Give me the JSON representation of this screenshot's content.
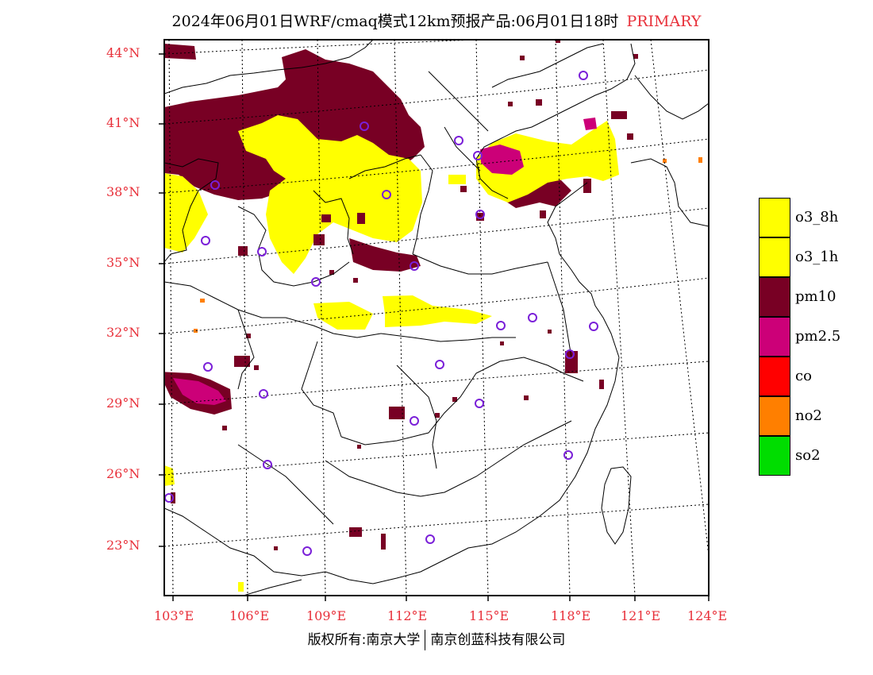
{
  "title": {
    "main": "2024年06月01日WRF/cmaq模式12km预报产品:06月01日18时",
    "tag": "PRIMARY"
  },
  "axes": {
    "lat_labels": [
      "44°N",
      "41°N",
      "38°N",
      "35°N",
      "32°N",
      "29°N",
      "26°N",
      "23°N"
    ],
    "lon_labels": [
      "103°E",
      "106°E",
      "109°E",
      "112°E",
      "115°E",
      "118°E",
      "121°E",
      "124°E"
    ]
  },
  "legend": [
    {
      "label": "o3_8h",
      "color": "#ffff00"
    },
    {
      "label": "o3_1h",
      "color": "#ffff00"
    },
    {
      "label": "pm10",
      "color": "#780024"
    },
    {
      "label": "pm2.5",
      "color": "#cc0078"
    },
    {
      "label": "co",
      "color": "#ff0000"
    },
    {
      "label": "no2",
      "color": "#ff7f00"
    },
    {
      "label": "so2",
      "color": "#00dd00"
    }
  ],
  "copyright": {
    "left": "版权所有:南京大学",
    "right": "南京创蓝科技有限公司"
  }
}
